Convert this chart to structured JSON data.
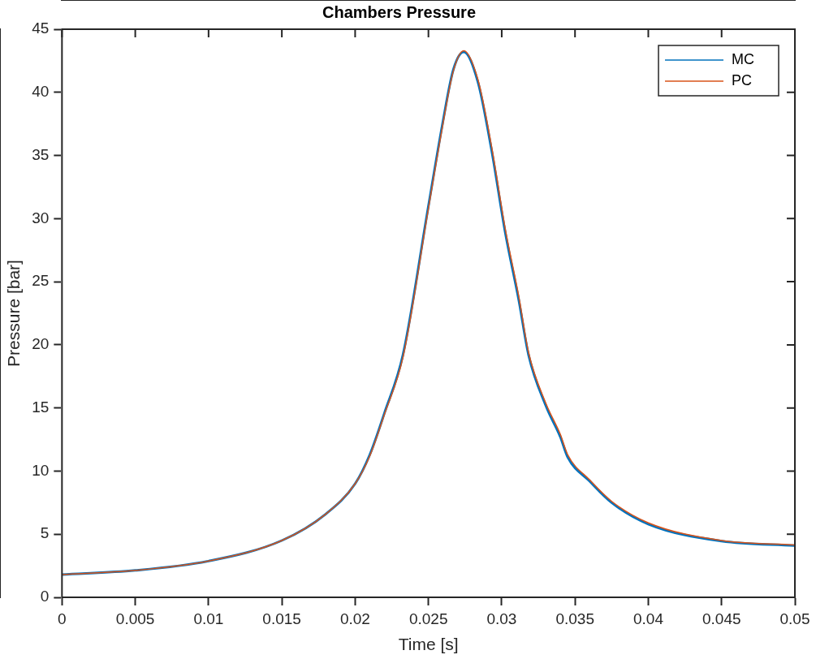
{
  "chart_data": {
    "type": "line",
    "title": "Chambers Pressure",
    "xlabel": "Time [s]",
    "ylabel": "Pressure [bar]",
    "xlim": [
      0,
      0.05
    ],
    "xticks": [
      0,
      0.005,
      0.01,
      0.015,
      0.02,
      0.025,
      0.03,
      0.035,
      0.04,
      0.045,
      0.05
    ],
    "ylim": [
      0,
      45
    ],
    "yticks": [
      0,
      5,
      10,
      15,
      20,
      25,
      30,
      35,
      40,
      45
    ],
    "grid": false,
    "legend": "top right",
    "marker": "none",
    "line_style": "solid",
    "series": [
      {
        "name": "MC",
        "color": "#0072bd",
        "x": [
          0,
          0.005,
          0.01,
          0.015,
          0.018,
          0.02,
          0.021,
          0.022,
          0.02326,
          0.025,
          0.02596,
          0.0267,
          0.02741,
          0.02838,
          0.02931,
          0.03024,
          0.03117,
          0.03183,
          0.033,
          0.034,
          0.0345,
          0.036,
          0.0375,
          0.04,
          0.045,
          0.05
        ],
        "values": [
          1.8,
          2.13,
          2.87,
          4.5,
          6.6,
          9.0,
          11.3,
          14.6,
          19.2,
          31.0,
          37.5,
          41.8,
          43.2,
          40.8,
          35.4,
          28.9,
          23.5,
          19.2,
          15.2,
          12.7,
          11.1,
          9.2,
          7.5,
          5.8,
          4.45,
          4.1
        ]
      },
      {
        "name": "PC",
        "color": "#d95319",
        "x": [
          0,
          0.005,
          0.01,
          0.015,
          0.018,
          0.02,
          0.021,
          0.022,
          0.02326,
          0.025,
          0.02596,
          0.0267,
          0.02741,
          0.02838,
          0.02931,
          0.03024,
          0.03117,
          0.03183,
          0.033,
          0.034,
          0.0345,
          0.036,
          0.0375,
          0.04,
          0.045,
          0.05
        ],
        "values": [
          1.8,
          2.13,
          2.87,
          4.5,
          6.6,
          9.0,
          11.2,
          14.5,
          19.0,
          30.8,
          37.3,
          41.7,
          43.3,
          41.0,
          35.7,
          29.2,
          23.8,
          19.4,
          15.4,
          12.9,
          11.3,
          9.3,
          7.6,
          5.9,
          4.5,
          4.15
        ]
      }
    ]
  }
}
